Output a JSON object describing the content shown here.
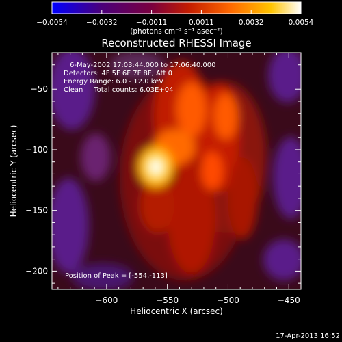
{
  "chart_data": {
    "type": "heatmap",
    "title": "Reconstructed RHESSI Image",
    "xlabel": "Heliocentric X (arcsec)",
    "ylabel": "Heliocentric Y (arcsec)",
    "xlim": [
      -645,
      -440
    ],
    "ylim": [
      -215,
      -20
    ],
    "x_ticks": [
      -600,
      -550,
      -500,
      -450
    ],
    "y_ticks": [
      -50,
      -100,
      -150,
      -200
    ],
    "colorbar": {
      "range": [
        -0.0054,
        0.0054
      ],
      "ticks": [
        "-0.0054",
        "-0.0032",
        "-0.0011",
        "0.0011",
        "0.0032",
        "0.0054"
      ],
      "units": "(photons cm⁻² s⁻¹ asec⁻²)",
      "colors": [
        "#0000ff",
        "#4b007a",
        "#7a003f",
        "#c41c00",
        "#ff6a00",
        "#ffc400",
        "#ffffff"
      ]
    },
    "info_lines": [
      "6-May-2002 17:03:44.000 to 17:06:40.000",
      "Detectors: 4F 5F 6F 7F 8F, Att 0",
      "Energy Range: 6.0 - 12.0 keV",
      "Clean     Total counts: 6.03E+04"
    ],
    "peak_label": "Position of Peak = [-554,-113]",
    "peak": {
      "x": -554,
      "y": -113
    },
    "timestamp": "17-Apr-2013 16:52"
  }
}
